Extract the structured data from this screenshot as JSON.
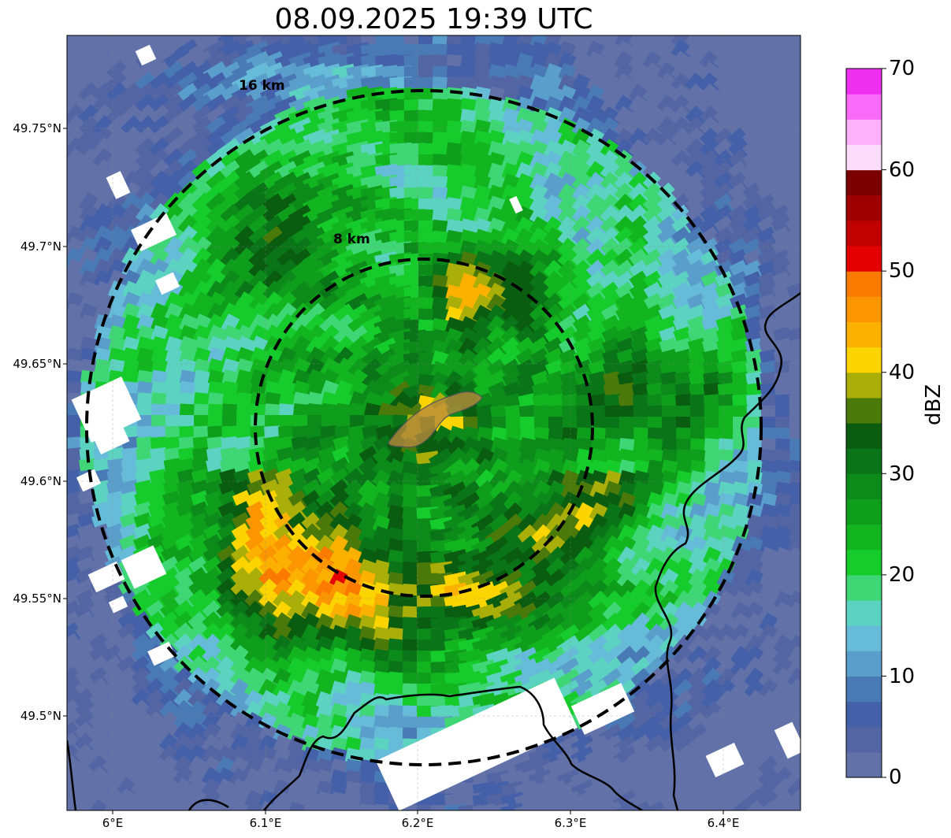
{
  "title": "08.09.2025 19:39 UTC",
  "map": {
    "lat_ticks": [
      "49.75°N",
      "49.7°N",
      "49.65°N",
      "49.6°N",
      "49.55°N",
      "49.5°N"
    ],
    "lon_ticks": [
      "6°E",
      "6.1°E",
      "6.2°E",
      "6.3°E",
      "6.4°E"
    ],
    "range_rings": [
      {
        "label": "16 km",
        "radius_km": 16
      },
      {
        "label": "8 km",
        "radius_km": 8
      }
    ],
    "colors": {
      "ring": "#000000",
      "border": "#000000",
      "highlight_fill": "#b58a3c",
      "clear_air": "#ffffff"
    }
  },
  "colorbar": {
    "label": "dBZ",
    "ticks": [
      "0",
      "10",
      "20",
      "30",
      "40",
      "50",
      "60",
      "70"
    ],
    "min": 0,
    "max": 70,
    "step": 2.5,
    "colors": [
      "#6272a8",
      "#5366a3",
      "#4460a8",
      "#4a7ab5",
      "#5a9ecb",
      "#66bcd8",
      "#5cd2c0",
      "#3fd675",
      "#16cc2c",
      "#12b51f",
      "#0f9e1c",
      "#0c8a1a",
      "#0a7518",
      "#0a5c10",
      "#4c7a0a",
      "#a9ae08",
      "#fcd500",
      "#fcb100",
      "#fb9500",
      "#fa7b00",
      "#e50000",
      "#c10000",
      "#9e0000",
      "#7a0000",
      "#fbdcfb",
      "#fbb2fb",
      "#fa6af8",
      "#ee2ff0"
    ]
  }
}
